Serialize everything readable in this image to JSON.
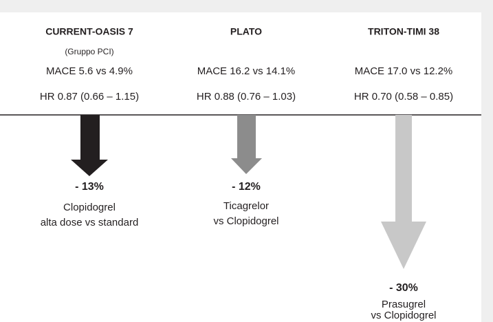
{
  "columns": [
    {
      "title": "CURRENT-OASIS 7",
      "subtitle": "(Gruppo PCI)",
      "mace": "MACE 5.6 vs 4.9%",
      "hr": "HR 0.87 (0.66 – 1.15)",
      "change": "- 13%",
      "description": [
        "Clopidogrel",
        "alta dose vs standard"
      ]
    },
    {
      "title": "PLATO",
      "mace": "MACE 16.2 vs 14.1%",
      "hr": "HR 0.88 (0.76 – 1.03)",
      "change": "- 12%",
      "description": [
        "Ticagrelor",
        "vs Clopidogrel"
      ]
    },
    {
      "title": "TRITON-TIMI 38",
      "mace": "MACE 17.0 vs 12.2%",
      "hr": "HR 0.70 (0.58 – 0.85)",
      "change": "- 30%",
      "description": [
        "Prasugrel",
        "vs Clopidogrel"
      ]
    }
  ]
}
